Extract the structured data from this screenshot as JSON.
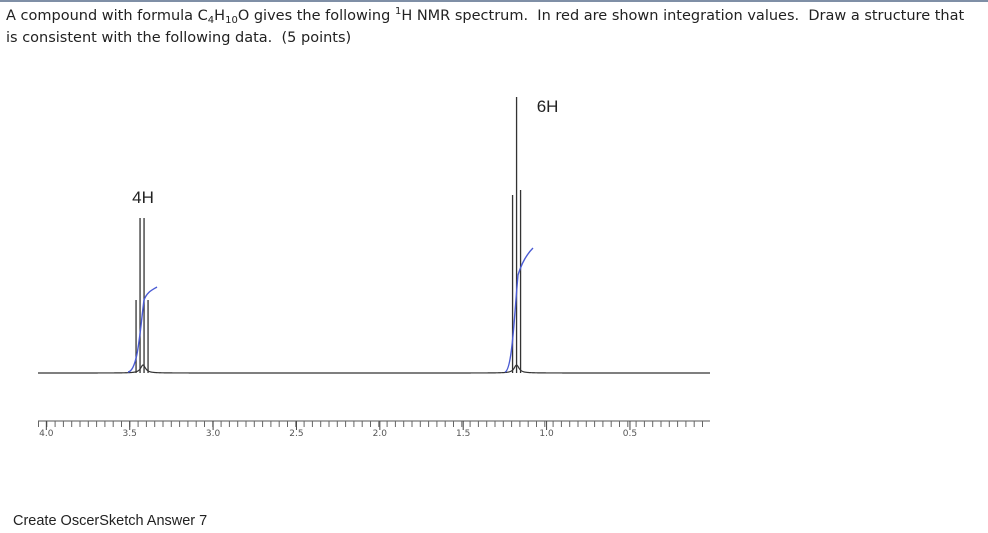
{
  "question": {
    "parts": [
      "A compound with formula C",
      "4",
      "H",
      "10",
      "O gives the following ",
      "1",
      "H NMR spectrum.  In red are shown integration values.  Draw a structure that is consistent with the following data.  (5 points)"
    ]
  },
  "chart_data": {
    "type": "spectrum",
    "xlim": [
      4.05,
      0.02
    ],
    "xticks": [
      {
        "value": 4.0,
        "label": "4.0"
      },
      {
        "value": 3.5,
        "label": "3.5"
      },
      {
        "value": 3.0,
        "label": "3.0"
      },
      {
        "value": 2.5,
        "label": "2.5"
      },
      {
        "value": 2.0,
        "label": "2.0"
      },
      {
        "value": 1.5,
        "label": "1.5"
      },
      {
        "value": 1.0,
        "label": "1.0"
      },
      {
        "value": 0.5,
        "label": "0.5"
      }
    ],
    "peaks": [
      {
        "x": 3.42,
        "label": "4H"
      },
      {
        "x": 1.18,
        "label": "6H"
      }
    ],
    "trace_color": "#333333",
    "integral_color": "#4a5bd4"
  },
  "footer": {
    "link": "Create OscerSketch Answer 7"
  }
}
